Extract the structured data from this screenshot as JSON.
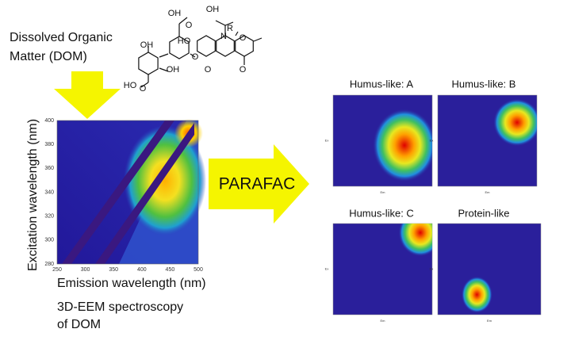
{
  "header": {
    "lines": [
      "Dissolved Organic",
      "Matter (DOM)"
    ]
  },
  "structure": {
    "atoms": [
      "OH",
      "OH",
      "O",
      "HO",
      "O",
      "OH",
      "R",
      "N",
      "O",
      "O",
      "O",
      "HO",
      "O",
      "OH"
    ]
  },
  "eem": {
    "xticks": [
      "250",
      "300",
      "350",
      "400",
      "450",
      "500"
    ],
    "yticks": [
      "280",
      "300",
      "320",
      "340",
      "360",
      "380",
      "400"
    ],
    "xlabel": "Emission wavelength (nm)",
    "ylabel": "Excitation wavelength (nm)",
    "caption": [
      "3D-EEM spectroscopy",
      "of DOM"
    ]
  },
  "method": "PARAFAC",
  "components": [
    {
      "title": "Humus-like: A",
      "xlabel": "Em",
      "ylabel": "Ex"
    },
    {
      "title": "Humus-like: B",
      "xlabel": "Em",
      "ylabel": "Ex"
    },
    {
      "title": "Humus-like: C",
      "xlabel": "Em",
      "ylabel": "Ex"
    },
    {
      "title": "Protein-like",
      "xlabel": "Em",
      "ylabel": "Ex"
    }
  ]
}
